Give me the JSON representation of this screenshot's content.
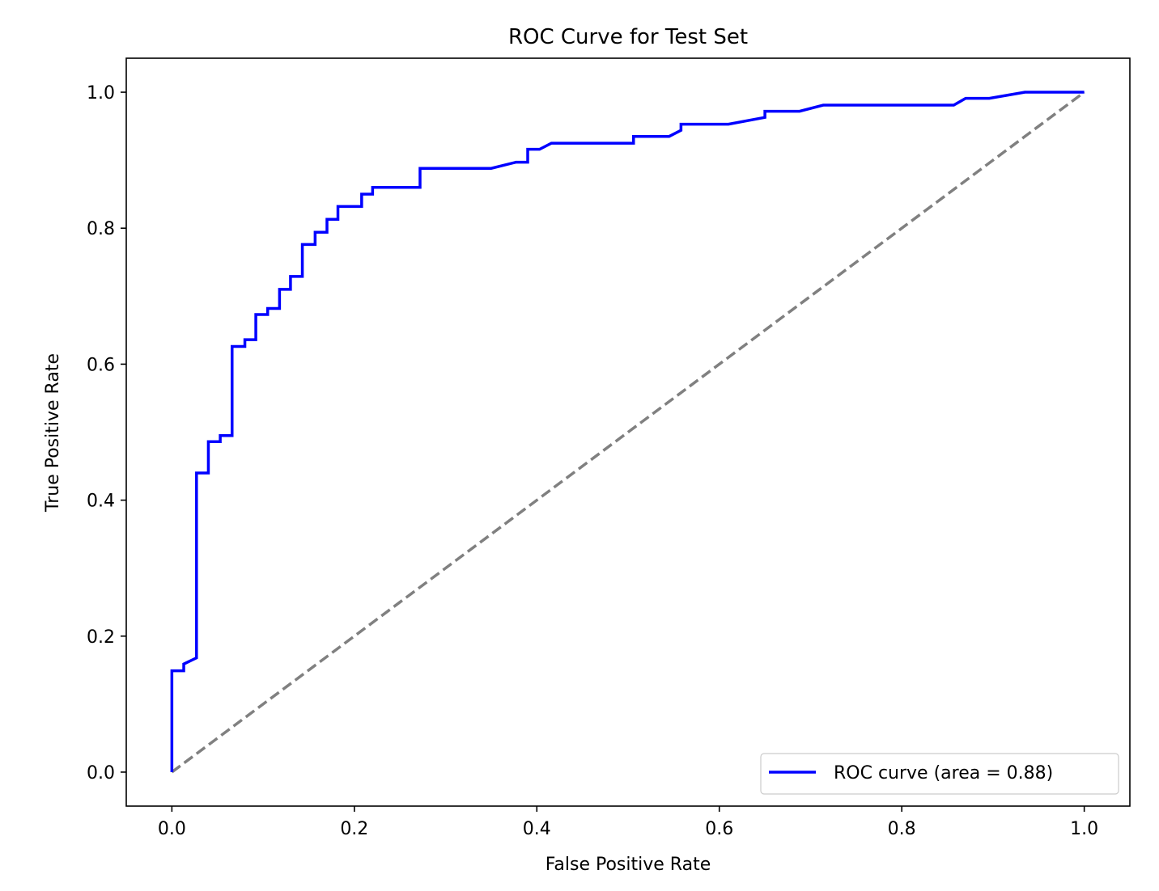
{
  "chart_data": {
    "type": "line",
    "title": "ROC Curve for Test Set",
    "xlabel": "False Positive Rate",
    "ylabel": "True Positive Rate",
    "xlim": [
      -0.05,
      1.05
    ],
    "ylim": [
      -0.05,
      1.05
    ],
    "x_ticks": [
      0.0,
      0.2,
      0.4,
      0.6,
      0.8,
      1.0
    ],
    "x_tick_labels": [
      "0.0",
      "0.2",
      "0.4",
      "0.6",
      "0.8",
      "1.0"
    ],
    "y_ticks": [
      0.0,
      0.2,
      0.4,
      0.6,
      0.8,
      1.0
    ],
    "y_tick_labels": [
      "0.0",
      "0.2",
      "0.4",
      "0.6",
      "0.8",
      "1.0"
    ],
    "grid": false,
    "legend_position": "lower right",
    "series": [
      {
        "name": "ROC curve (area = 0.88)",
        "color": "#0000ff",
        "style": "solid",
        "x": [
          0.0,
          0.0,
          0.013,
          0.013,
          0.027,
          0.027,
          0.04,
          0.04,
          0.053,
          0.053,
          0.066,
          0.066,
          0.08,
          0.08,
          0.092,
          0.092,
          0.105,
          0.105,
          0.118,
          0.118,
          0.13,
          0.13,
          0.143,
          0.143,
          0.157,
          0.157,
          0.17,
          0.17,
          0.182,
          0.182,
          0.208,
          0.208,
          0.22,
          0.22,
          0.272,
          0.272,
          0.35,
          0.377,
          0.39,
          0.39,
          0.403,
          0.416,
          0.506,
          0.506,
          0.545,
          0.558,
          0.558,
          0.61,
          0.65,
          0.65,
          0.688,
          0.714,
          0.857,
          0.87,
          0.896,
          0.935,
          1.0
        ],
        "y": [
          0.0,
          0.149,
          0.149,
          0.159,
          0.168,
          0.44,
          0.44,
          0.486,
          0.486,
          0.495,
          0.495,
          0.626,
          0.626,
          0.636,
          0.636,
          0.673,
          0.673,
          0.682,
          0.682,
          0.71,
          0.71,
          0.729,
          0.729,
          0.776,
          0.776,
          0.794,
          0.794,
          0.813,
          0.813,
          0.832,
          0.832,
          0.85,
          0.85,
          0.86,
          0.86,
          0.888,
          0.888,
          0.897,
          0.897,
          0.916,
          0.916,
          0.925,
          0.925,
          0.935,
          0.935,
          0.944,
          0.953,
          0.953,
          0.963,
          0.972,
          0.972,
          0.981,
          0.981,
          0.991,
          0.991,
          1.0,
          1.0
        ]
      },
      {
        "color": "#808080",
        "style": "dashed",
        "x": [
          0.0,
          1.0
        ],
        "y": [
          0.0,
          1.0
        ]
      }
    ]
  }
}
